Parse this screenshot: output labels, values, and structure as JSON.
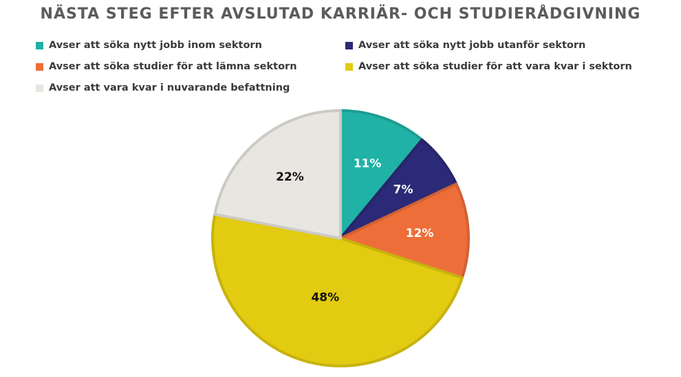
{
  "chart_data": {
    "type": "pie",
    "title": "NÄSTA STEG EFTER AVSLUTAD KARRIÄR- OCH STUDIERÅDGIVNING",
    "legend_position": "top",
    "slices": [
      {
        "name": "Avser att söka nytt jobb inom sektorn",
        "value": 11,
        "label": "11%",
        "color": "#20b2a6",
        "label_color": "#ffffff"
      },
      {
        "name": "Avser att söka nytt jobb utanför sektorn",
        "value": 7,
        "label": "7%",
        "color": "#2b2a78",
        "label_color": "#ffffff"
      },
      {
        "name": "Avser att söka studier för att lämna sektorn",
        "value": 12,
        "label": "12%",
        "color": "#ee6e3a",
        "label_color": "#ffffff"
      },
      {
        "name": "Avser att söka studier för att vara kvar i sektorn",
        "value": 48,
        "label": "48%",
        "color": "#e2cb10",
        "label_color": "#111111"
      },
      {
        "name": "Avser att vara kvar i nuvarande befattning",
        "value": 22,
        "label": "22%",
        "color": "#e8e6e0",
        "label_color": "#111111"
      }
    ]
  }
}
